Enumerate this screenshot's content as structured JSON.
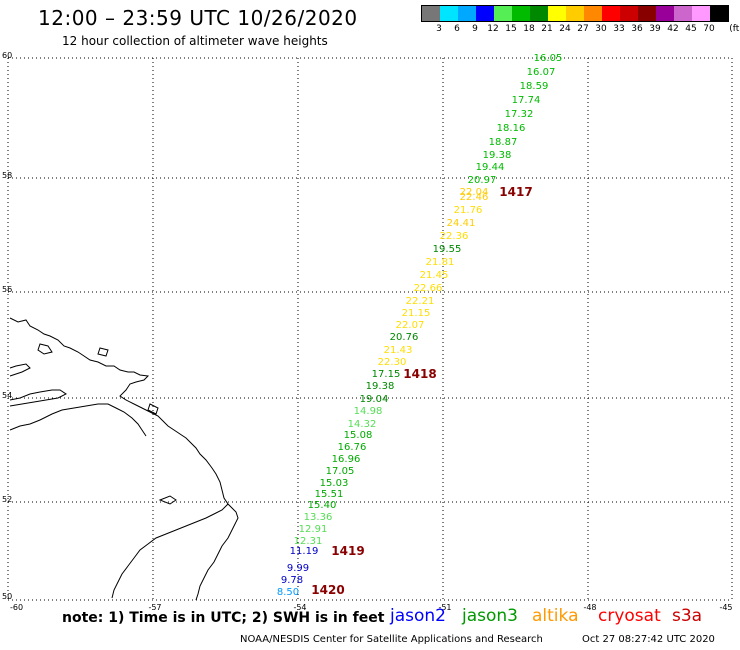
{
  "header": {
    "title": "12:00 – 23:59 UTC 10/26/2020",
    "subtitle": "12 hour collection of altimeter wave heights"
  },
  "legend": {
    "unit": "(ft)",
    "bins": [
      {
        "label": "3",
        "color": "#777777"
      },
      {
        "label": "6",
        "color": "#00e5ff"
      },
      {
        "label": "9",
        "color": "#00a8ff"
      },
      {
        "label": "12",
        "color": "#0000ff"
      },
      {
        "label": "15",
        "color": "#55ee55"
      },
      {
        "label": "18",
        "color": "#00bb00"
      },
      {
        "label": "21",
        "color": "#008800"
      },
      {
        "label": "24",
        "color": "#ffff00"
      },
      {
        "label": "27",
        "color": "#ffcc00"
      },
      {
        "label": "30",
        "color": "#ff8800"
      },
      {
        "label": "33",
        "color": "#ff0000"
      },
      {
        "label": "36",
        "color": "#cc0000"
      },
      {
        "label": "39",
        "color": "#880000"
      },
      {
        "label": "42",
        "color": "#990099"
      },
      {
        "label": "45",
        "color": "#cc66cc"
      },
      {
        "label": "70",
        "color": "#ff99ff"
      },
      {
        "label": "",
        "color": "#000000"
      }
    ]
  },
  "map": {
    "lon_ticks": [
      "-60",
      "-57",
      "-54",
      "-51",
      "-48",
      "-45"
    ],
    "lat_ticks": [
      "60",
      "58",
      "56",
      "54",
      "52",
      "50"
    ],
    "observations": [
      {
        "v": "16.05",
        "c": "#00bb00"
      },
      {
        "v": "16.07",
        "c": "#00bb00"
      },
      {
        "v": "18.59",
        "c": "#00bb00"
      },
      {
        "v": "17.74",
        "c": "#00bb00"
      },
      {
        "v": "17.32",
        "c": "#00bb00"
      },
      {
        "v": "18.16",
        "c": "#00bb00"
      },
      {
        "v": "18.87",
        "c": "#00bb00"
      },
      {
        "v": "19.38",
        "c": "#00bb00"
      },
      {
        "v": "19.44",
        "c": "#00bb00"
      },
      {
        "v": "20.97",
        "c": "#00bb00"
      },
      {
        "v": "22.04",
        "c": "#ffcc00"
      },
      {
        "v": "22.46",
        "c": "#ffcc00"
      },
      {
        "v": "21.76",
        "c": "#ffdd00"
      },
      {
        "v": "24.41",
        "c": "#ffcc00"
      },
      {
        "v": "22.36",
        "c": "#ffdd00"
      },
      {
        "v": "19.55",
        "c": "#008800"
      },
      {
        "v": "21.81",
        "c": "#ffdd00"
      },
      {
        "v": "21.45",
        "c": "#ffdd00"
      },
      {
        "v": "22.66",
        "c": "#ffdd00"
      },
      {
        "v": "22.21",
        "c": "#ffdd00"
      },
      {
        "v": "21.15",
        "c": "#ffdd00"
      },
      {
        "v": "22.07",
        "c": "#ffdd00"
      },
      {
        "v": "20.76",
        "c": "#008800"
      },
      {
        "v": "21.43",
        "c": "#ffdd00"
      },
      {
        "v": "22.30",
        "c": "#ffdd00"
      },
      {
        "v": "17.15",
        "c": "#008800"
      },
      {
        "v": "19.38",
        "c": "#008800"
      },
      {
        "v": "19.04",
        "c": "#008800"
      },
      {
        "v": "14.98",
        "c": "#55dd55"
      },
      {
        "v": "14.32",
        "c": "#55dd55"
      },
      {
        "v": "15.08",
        "c": "#00aa00"
      },
      {
        "v": "16.76",
        "c": "#00aa00"
      },
      {
        "v": "16.96",
        "c": "#00aa00"
      },
      {
        "v": "17.05",
        "c": "#00aa00"
      },
      {
        "v": "15.03",
        "c": "#00aa00"
      },
      {
        "v": "15.51",
        "c": "#00aa00"
      },
      {
        "v": "15.40",
        "c": "#00aa00"
      },
      {
        "v": "13.36",
        "c": "#55dd55"
      },
      {
        "v": "12.91",
        "c": "#55dd55"
      },
      {
        "v": "12.31",
        "c": "#55dd55"
      },
      {
        "v": "11.19",
        "c": "#0000cc"
      },
      {
        "v": "9.99",
        "c": "#0000cc"
      },
      {
        "v": "9.78",
        "c": "#0000cc"
      },
      {
        "v": "8.50",
        "c": "#0099ff"
      }
    ],
    "time_labels": [
      {
        "v": "1417",
        "c": "#880000"
      },
      {
        "v": "1418",
        "c": "#880000"
      },
      {
        "v": "1419",
        "c": "#880000"
      },
      {
        "v": "1420",
        "c": "#880000"
      }
    ]
  },
  "footer": {
    "note": "note: 1) Time is in UTC; 2) SWH is in feet",
    "satellites": [
      {
        "name": "jason2",
        "color": "#0000ff"
      },
      {
        "name": "jason3",
        "color": "#009900"
      },
      {
        "name": "altika",
        "color": "#ff9900"
      },
      {
        "name": "cryosat",
        "color": "#ff0000"
      },
      {
        "name": "s3a",
        "color": "#cc0000"
      }
    ],
    "credit": "NOAA/NESDIS Center for Satellite Applications and Research",
    "timestamp": "Oct 27 08:27:42 UTC 2020"
  }
}
